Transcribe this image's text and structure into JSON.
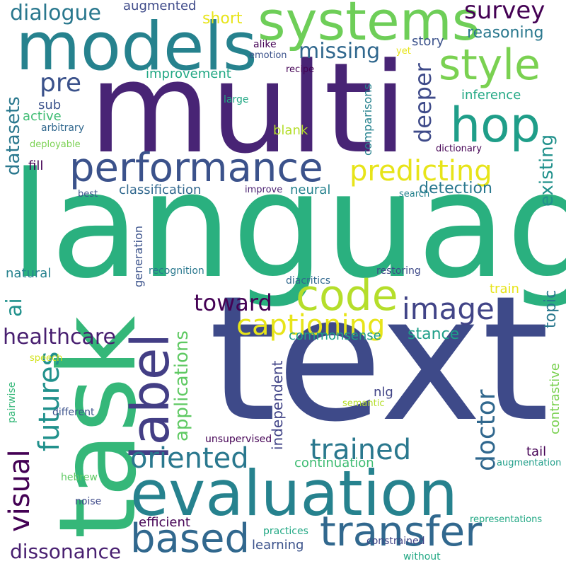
{
  "palette": {
    "purple": "#482475",
    "dark_purple": "#440154",
    "indigo": "#3e4a89",
    "blue": "#31688e",
    "teal_blue": "#26828e",
    "teal": "#1f9e89",
    "green": "#35b779",
    "light_green": "#6ece58",
    "yellow_green": "#b5de2b",
    "yellow": "#e7e419"
  },
  "words": [
    {
      "text": "text",
      "color": "#3e4a89"
    },
    {
      "text": "language",
      "color": "#2ab07f"
    },
    {
      "text": "multi",
      "color": "#482475"
    },
    {
      "text": "task",
      "color": "#35b779"
    },
    {
      "text": "evaluation",
      "color": "#26828e"
    },
    {
      "text": "models",
      "color": "#26828e"
    },
    {
      "text": "systems",
      "color": "#6ece58"
    },
    {
      "text": "label",
      "color": "#433e85"
    },
    {
      "text": "performance",
      "color": "#3b528b"
    },
    {
      "text": "transfer",
      "color": "#31688e"
    },
    {
      "text": "based",
      "color": "#31688e"
    },
    {
      "text": "hop",
      "color": "#1f9e89"
    },
    {
      "text": "code",
      "color": "#b5de2b"
    },
    {
      "text": "style",
      "color": "#7ad151"
    },
    {
      "text": "predicting",
      "color": "#e7e419"
    },
    {
      "text": "image",
      "color": "#414487"
    },
    {
      "text": "captioning",
      "color": "#e7e419"
    },
    {
      "text": "oriented",
      "color": "#2a788e"
    },
    {
      "text": "trained",
      "color": "#2a788e"
    },
    {
      "text": "futures",
      "color": "#21918c"
    },
    {
      "text": "visual",
      "color": "#440154"
    },
    {
      "text": "doctor",
      "color": "#31688e"
    },
    {
      "text": "survey",
      "color": "#440154"
    },
    {
      "text": "dialogue",
      "color": "#2a788e"
    },
    {
      "text": "pre",
      "color": "#3b528b"
    },
    {
      "text": "missing",
      "color": "#31688e"
    },
    {
      "text": "deeper",
      "color": "#3e4a89"
    },
    {
      "text": "existing",
      "color": "#21918c"
    },
    {
      "text": "healthcare",
      "color": "#481f70"
    },
    {
      "text": "toward",
      "color": "#440154"
    },
    {
      "text": "dissonance",
      "color": "#481f70"
    },
    {
      "text": "applications",
      "color": "#5ec962"
    },
    {
      "text": "datasets",
      "color": "#2a788e"
    },
    {
      "text": "ai",
      "color": "#21918c"
    },
    {
      "text": "reasoning",
      "color": "#2a788e"
    },
    {
      "text": "detection",
      "color": "#2a788e"
    },
    {
      "text": "stance",
      "color": "#1f9e89"
    },
    {
      "text": "topic",
      "color": "#2a788e"
    },
    {
      "text": "short",
      "color": "#e7e419"
    },
    {
      "text": "independent",
      "color": "#414487"
    },
    {
      "text": "classification",
      "color": "#31688e"
    },
    {
      "text": "neural",
      "color": "#26828e"
    },
    {
      "text": "generation",
      "color": "#3b528b"
    },
    {
      "text": "comparisons",
      "color": "#26828e"
    },
    {
      "text": "commonsense",
      "color": "#1f9e89"
    },
    {
      "text": "contrastive",
      "color": "#7ad151"
    },
    {
      "text": "continuation",
      "color": "#3fbc73"
    },
    {
      "text": "efficient",
      "color": "#440154"
    },
    {
      "text": "learning",
      "color": "#3b528b"
    },
    {
      "text": "sub",
      "color": "#3b528b"
    },
    {
      "text": "active",
      "color": "#3fbc73"
    },
    {
      "text": "improvement",
      "color": "#22a884"
    },
    {
      "text": "inference",
      "color": "#22a884"
    },
    {
      "text": "blank",
      "color": "#b5de2b"
    },
    {
      "text": "fill",
      "color": "#440154"
    },
    {
      "text": "natural",
      "color": "#26828e"
    },
    {
      "text": "nlg",
      "color": "#414487"
    },
    {
      "text": "story",
      "color": "#3b528b"
    },
    {
      "text": "augmented",
      "color": "#3e4a89"
    },
    {
      "text": "tail",
      "color": "#440154"
    },
    {
      "text": "train",
      "color": "#e7e419"
    },
    {
      "text": "constrained",
      "color": "#414487"
    },
    {
      "text": "without",
      "color": "#22a884"
    },
    {
      "text": "practices",
      "color": "#22a884"
    },
    {
      "text": "representations",
      "color": "#22a884"
    },
    {
      "text": "augmentation",
      "color": "#1f9e89"
    },
    {
      "text": "noise",
      "color": "#3e4a89"
    },
    {
      "text": "hebrew",
      "color": "#5ec962"
    },
    {
      "text": "different",
      "color": "#3b528b"
    },
    {
      "text": "pairwise",
      "color": "#35b779"
    },
    {
      "text": "unsupervised",
      "color": "#440154"
    },
    {
      "text": "semantic",
      "color": "#b5de2b"
    },
    {
      "text": "speech",
      "color": "#d2e21b"
    },
    {
      "text": "diacritics",
      "color": "#31688e"
    },
    {
      "text": "restoring",
      "color": "#3e4a89"
    },
    {
      "text": "recognition",
      "color": "#2a788e"
    },
    {
      "text": "best",
      "color": "#3b528b"
    },
    {
      "text": "improve",
      "color": "#481f70"
    },
    {
      "text": "search",
      "color": "#26828e"
    },
    {
      "text": "dictionary",
      "color": "#440154"
    },
    {
      "text": "deployable",
      "color": "#7ad151"
    },
    {
      "text": "arbitrary",
      "color": "#31688e"
    },
    {
      "text": "large",
      "color": "#22a884"
    },
    {
      "text": "recipe",
      "color": "#440154"
    },
    {
      "text": "alike",
      "color": "#440154"
    },
    {
      "text": "emotion",
      "color": "#3b528b"
    },
    {
      "text": "yet",
      "color": "#e7e419"
    }
  ]
}
